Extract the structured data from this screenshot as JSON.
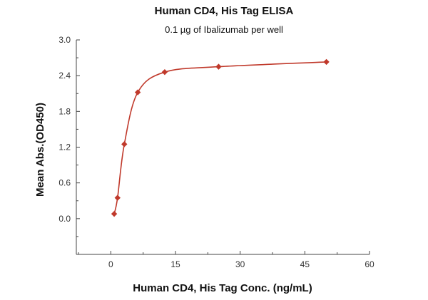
{
  "chart_data": {
    "type": "scatter",
    "title": "Human CD4, His Tag ELISA",
    "subtitle": "0.1 µg of Ibalizumab per well",
    "xlabel": "Human CD4, His Tag Conc. (ng/mL)",
    "ylabel": "Mean Abs.(OD450)",
    "xlim": [
      -8,
      60
    ],
    "ylim": [
      -0.6,
      3.0
    ],
    "xticks": [
      "0",
      "15",
      "30",
      "45",
      "60"
    ],
    "yticks": [
      "0.0",
      "0.6",
      "1.2",
      "1.8",
      "2.4",
      "3.0"
    ],
    "grid": false,
    "series": [
      {
        "points": [
          {
            "x": 0.78,
            "y": 0.08
          },
          {
            "x": 1.56,
            "y": 0.35
          },
          {
            "x": 3.13,
            "y": 1.25
          },
          {
            "x": 6.25,
            "y": 2.12
          },
          {
            "x": 12.5,
            "y": 2.46
          },
          {
            "x": 25,
            "y": 2.55
          },
          {
            "x": 50,
            "y": 2.63
          }
        ],
        "color": "#c0392b",
        "marker": "diamond",
        "fit_line": true
      }
    ]
  }
}
